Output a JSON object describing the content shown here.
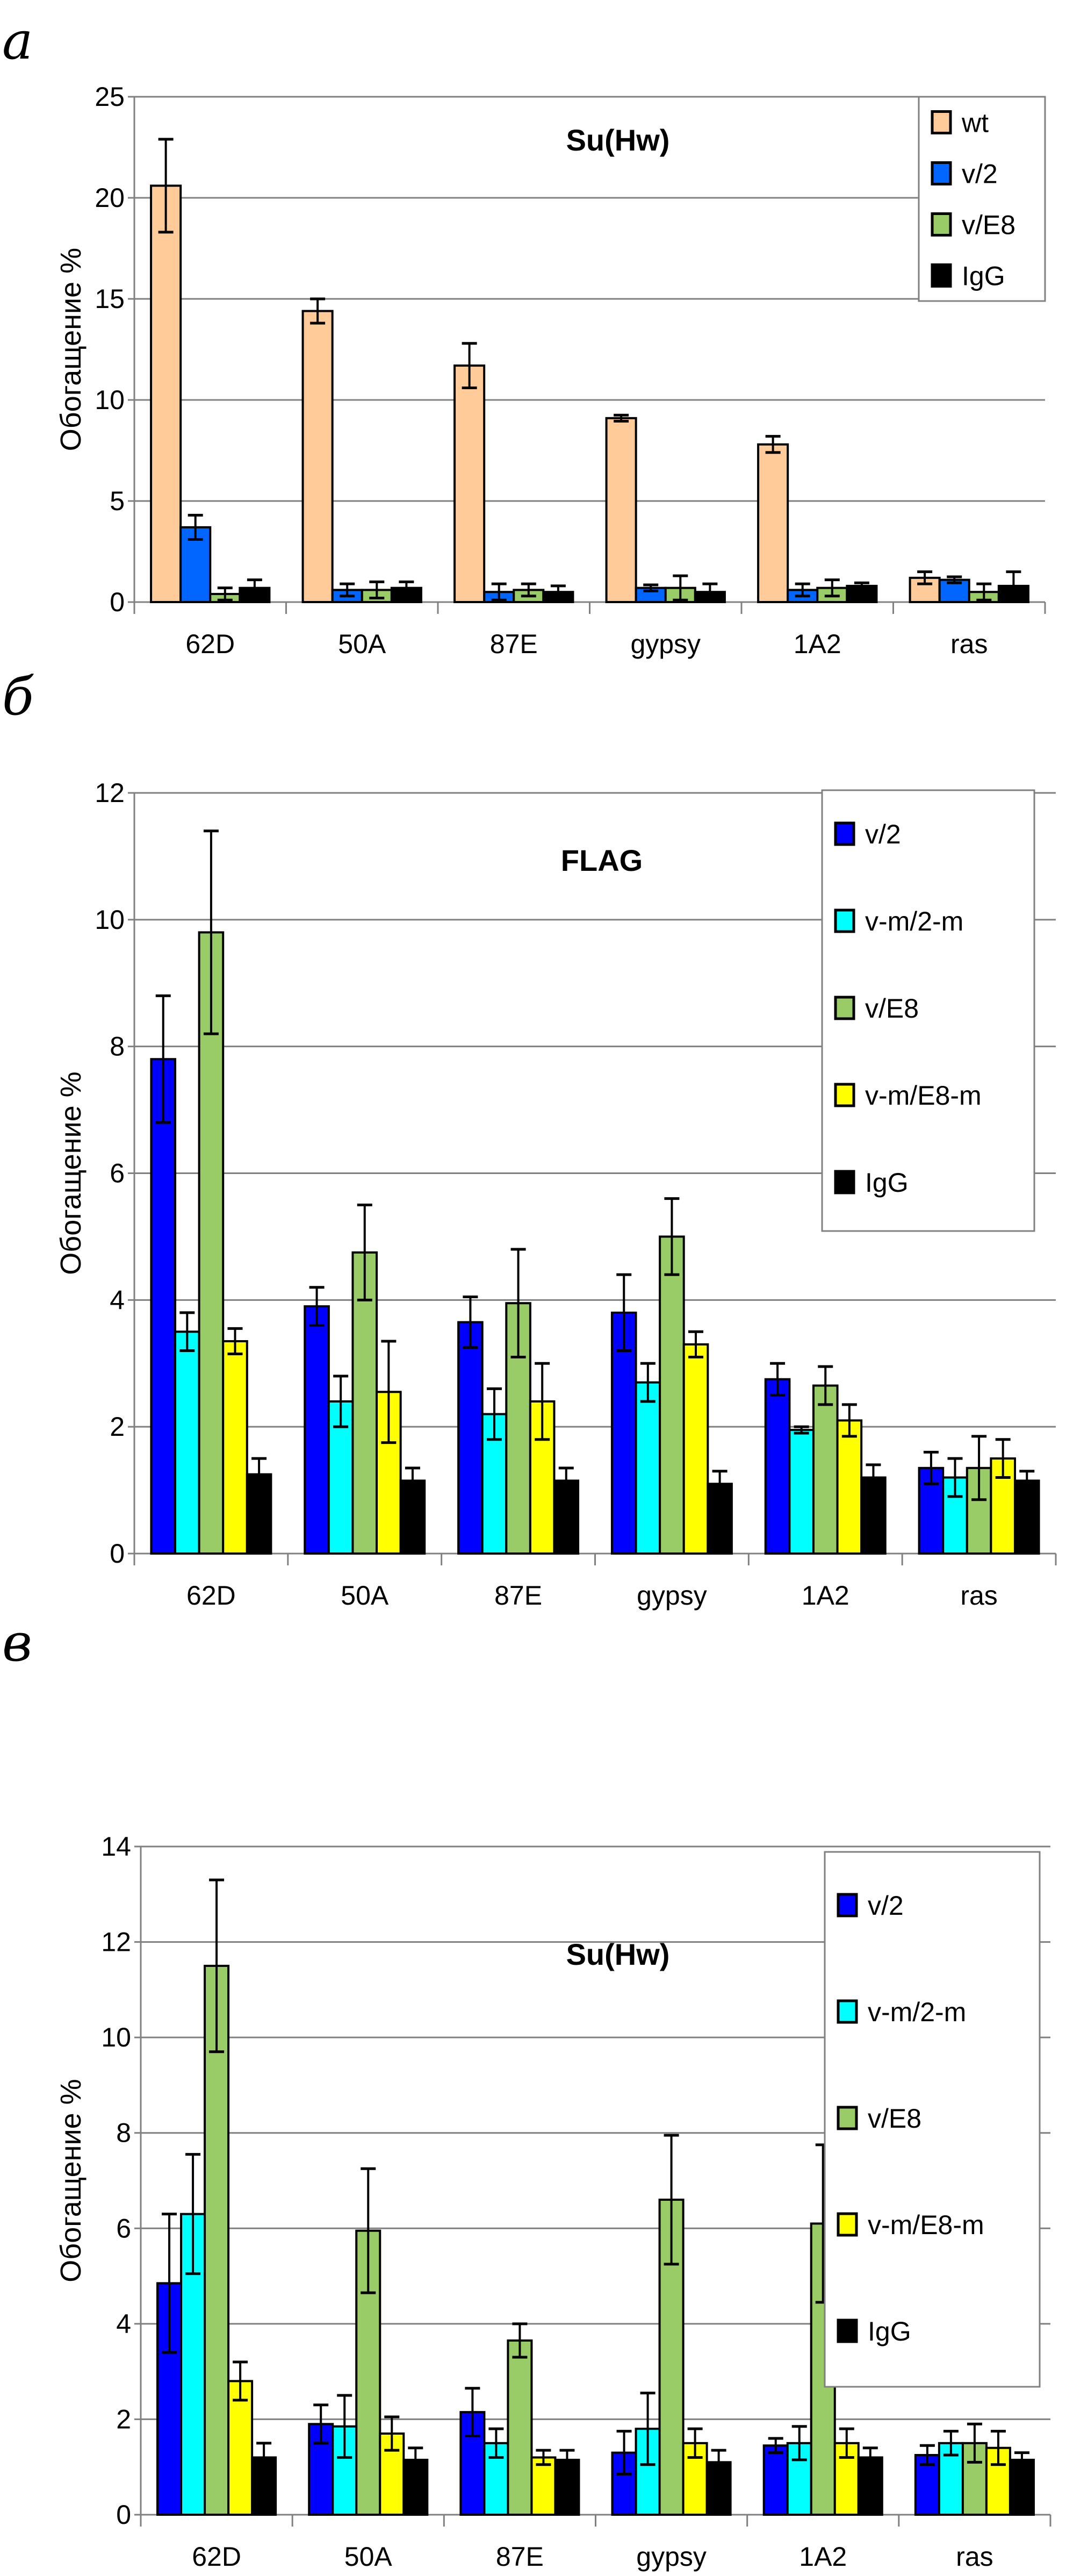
{
  "chart_data": [
    {
      "panel_label": "а",
      "type": "bar",
      "title": "Su(Hw)",
      "xlabel": "",
      "ylabel": "Обогащение %",
      "ylim": [
        0,
        25
      ],
      "yticks": [
        0,
        5,
        10,
        15,
        20,
        25
      ],
      "grid": true,
      "legend_position": "top-right",
      "categories": [
        "62D",
        "50A",
        "87E",
        "gypsy",
        "1A2",
        "ras"
      ],
      "series": [
        {
          "name": "wt",
          "color": "#FFCC99",
          "values": [
            20.6,
            14.4,
            11.7,
            9.1,
            7.8,
            1.2
          ],
          "errors": [
            2.3,
            0.6,
            1.1,
            0.15,
            0.4,
            0.3
          ]
        },
        {
          "name": "v/2",
          "color": "#0066FF",
          "values": [
            3.7,
            0.6,
            0.5,
            0.7,
            0.6,
            1.1
          ],
          "errors": [
            0.6,
            0.3,
            0.4,
            0.15,
            0.3,
            0.15
          ]
        },
        {
          "name": "v/E8",
          "color": "#99CC66",
          "values": [
            0.4,
            0.6,
            0.6,
            0.7,
            0.7,
            0.5
          ],
          "errors": [
            0.3,
            0.4,
            0.3,
            0.6,
            0.4,
            0.4
          ]
        },
        {
          "name": "IgG",
          "color": "#000000",
          "values": [
            0.7,
            0.7,
            0.5,
            0.5,
            0.8,
            0.8
          ],
          "errors": [
            0.4,
            0.3,
            0.3,
            0.4,
            0.15,
            0.7
          ]
        }
      ]
    },
    {
      "panel_label": "б",
      "type": "bar",
      "title": "FLAG",
      "xlabel": "",
      "ylabel": "Обогащение %",
      "ylim": [
        0,
        12
      ],
      "yticks": [
        0,
        2,
        4,
        6,
        8,
        10,
        12
      ],
      "grid": true,
      "legend_position": "top-right",
      "categories": [
        "62D",
        "50A",
        "87E",
        "gypsy",
        "1A2",
        "ras"
      ],
      "series": [
        {
          "name": "v/2",
          "color": "#0000FF",
          "values": [
            7.8,
            3.9,
            3.65,
            3.8,
            2.75,
            1.35
          ],
          "errors": [
            1.0,
            0.3,
            0.4,
            0.6,
            0.25,
            0.25
          ]
        },
        {
          "name": "v-m/2-m",
          "color": "#00FFFF",
          "values": [
            3.5,
            2.4,
            2.2,
            2.7,
            1.95,
            1.2
          ],
          "errors": [
            0.3,
            0.4,
            0.4,
            0.3,
            0.05,
            0.3
          ]
        },
        {
          "name": "v/E8",
          "color": "#99CC66",
          "values": [
            9.8,
            4.75,
            3.95,
            5.0,
            2.65,
            1.35
          ],
          "errors": [
            1.6,
            0.75,
            0.85,
            0.6,
            0.3,
            0.5
          ]
        },
        {
          "name": "v-m/E8-m",
          "color": "#FFFF00",
          "values": [
            3.35,
            2.55,
            2.4,
            3.3,
            2.1,
            1.5
          ],
          "errors": [
            0.2,
            0.8,
            0.6,
            0.2,
            0.25,
            0.3
          ]
        },
        {
          "name": "IgG",
          "color": "#000000",
          "values": [
            1.25,
            1.15,
            1.15,
            1.1,
            1.2,
            1.15
          ],
          "errors": [
            0.25,
            0.2,
            0.2,
            0.2,
            0.2,
            0.15
          ]
        }
      ]
    },
    {
      "panel_label": "в",
      "type": "bar",
      "title": "Su(Hw)",
      "xlabel": "",
      "ylabel": "Обогащение %",
      "ylim": [
        0,
        14
      ],
      "yticks": [
        0,
        2,
        4,
        6,
        8,
        10,
        12,
        14
      ],
      "grid": true,
      "legend_position": "top-right",
      "categories": [
        "62D",
        "50A",
        "87E",
        "gypsy",
        "1A2",
        "ras"
      ],
      "series": [
        {
          "name": "v/2",
          "color": "#0000FF",
          "values": [
            4.85,
            1.9,
            2.15,
            1.3,
            1.45,
            1.25
          ],
          "errors": [
            1.45,
            0.4,
            0.5,
            0.45,
            0.15,
            0.2
          ]
        },
        {
          "name": "v-m/2-m",
          "color": "#00FFFF",
          "values": [
            6.3,
            1.85,
            1.5,
            1.8,
            1.5,
            1.5
          ],
          "errors": [
            1.25,
            0.65,
            0.3,
            0.75,
            0.35,
            0.25
          ]
        },
        {
          "name": "v/E8",
          "color": "#99CC66",
          "values": [
            11.5,
            5.95,
            3.65,
            6.6,
            6.1,
            1.5
          ],
          "errors": [
            1.8,
            1.3,
            0.35,
            1.35,
            1.65,
            0.4
          ]
        },
        {
          "name": "v-m/E8-m",
          "color": "#FFFF00",
          "values": [
            2.8,
            1.7,
            1.2,
            1.5,
            1.5,
            1.4
          ],
          "errors": [
            0.4,
            0.35,
            0.15,
            0.3,
            0.3,
            0.35
          ]
        },
        {
          "name": "IgG",
          "color": "#000000",
          "values": [
            1.2,
            1.15,
            1.15,
            1.1,
            1.2,
            1.15
          ],
          "errors": [
            0.3,
            0.25,
            0.2,
            0.25,
            0.2,
            0.15
          ]
        }
      ]
    }
  ]
}
